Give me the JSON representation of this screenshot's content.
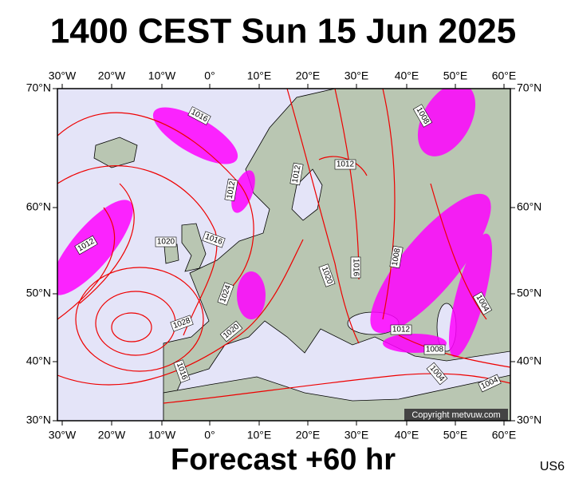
{
  "title": "1400 CEST Sun 15 Jun 2025",
  "map": {
    "top_labels": [
      "30°W",
      "20°W",
      "10°W",
      "0°",
      "10°E",
      "20°E",
      "30°E",
      "40°E",
      "50°E",
      "60°E"
    ],
    "bottom_labels": [
      "30°W",
      "20°W",
      "10°W",
      "0°",
      "10°E",
      "20°E",
      "30°E",
      "40°E",
      "50°E",
      "60°E"
    ],
    "left_labels": [
      "70°N",
      "60°N",
      "50°N",
      "40°N",
      "30°N"
    ],
    "right_labels": [
      "70°N",
      "60°N",
      "50°N",
      "40°N",
      "30°N"
    ],
    "isobar_labels": [
      "1016",
      "1008",
      "1012",
      "1012",
      "1012",
      "1012",
      "1020",
      "1016",
      "1016",
      "1008",
      "1020",
      "1024",
      "1028",
      "1020",
      "1012",
      "1008",
      "1004",
      "1016",
      "1004",
      "1004"
    ],
    "copyright": "Copyright metvuw.com"
  },
  "footer": {
    "forecast": "Forecast +60 hr",
    "code": "US6"
  }
}
